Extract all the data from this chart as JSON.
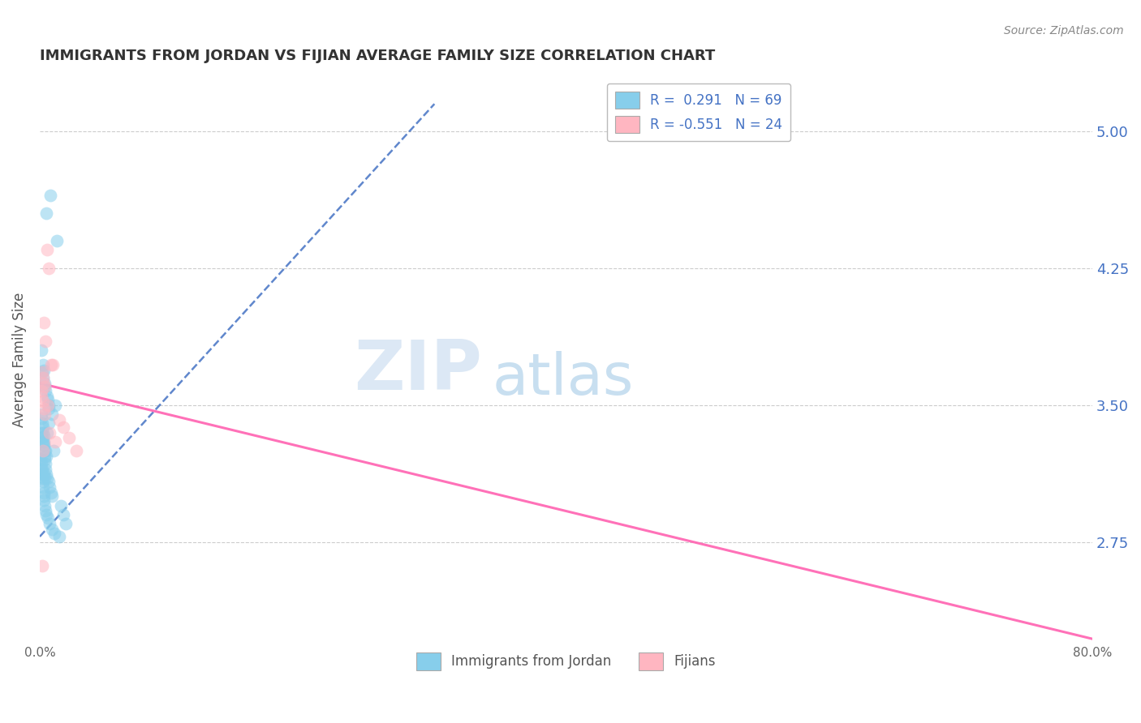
{
  "title": "IMMIGRANTS FROM JORDAN VS FIJIAN AVERAGE FAMILY SIZE CORRELATION CHART",
  "source": "Source: ZipAtlas.com",
  "ylabel": "Average Family Size",
  "yticks": [
    2.75,
    3.5,
    4.25,
    5.0
  ],
  "ytick_labels": [
    "2.75",
    "3.50",
    "4.25",
    "5.00"
  ],
  "ylim": [
    2.2,
    5.3
  ],
  "xlim": [
    0.0,
    80.0
  ],
  "legend_r1": "R =  0.291   N = 69",
  "legend_r2": "R = -0.551   N = 24",
  "color_blue": "#87CEEB",
  "color_pink": "#FFB6C1",
  "color_blue_line": "#4472c4",
  "color_pink_line": "#FF69B4",
  "watermark_zip": "ZIP",
  "watermark_atlas": "atlas",
  "watermark_color_zip": "#dce8f5",
  "watermark_color_atlas": "#c8dff0",
  "title_color": "#333333",
  "right_tick_color": "#4472c4",
  "jordan_x": [
    0.5,
    0.8,
    1.3,
    0.15,
    0.25,
    0.3,
    0.2,
    0.25,
    0.35,
    0.4,
    0.45,
    0.55,
    0.6,
    0.65,
    0.7,
    0.1,
    0.15,
    0.2,
    0.22,
    0.25,
    0.28,
    0.3,
    0.32,
    0.35,
    0.38,
    0.4,
    0.42,
    0.45,
    0.5,
    0.55,
    0.65,
    0.75,
    0.85,
    0.95,
    1.05,
    0.12,
    0.18,
    0.24,
    0.32,
    0.42,
    0.52,
    0.08,
    0.14,
    0.2,
    0.28,
    0.38,
    0.55,
    0.7,
    0.9,
    1.2,
    0.1,
    0.15,
    0.2,
    0.22,
    0.25,
    0.28,
    0.3,
    0.32,
    0.38,
    0.44,
    0.5,
    0.6,
    0.75,
    0.92,
    1.1,
    1.5,
    1.6,
    1.8,
    2.0
  ],
  "jordan_y": [
    4.55,
    4.65,
    4.4,
    3.8,
    3.72,
    3.69,
    3.68,
    3.65,
    3.62,
    3.6,
    3.58,
    3.55,
    3.53,
    3.5,
    3.48,
    3.45,
    3.43,
    3.4,
    3.38,
    3.35,
    3.33,
    3.3,
    3.28,
    3.25,
    3.22,
    3.2,
    3.18,
    3.15,
    3.12,
    3.1,
    3.08,
    3.05,
    3.02,
    3.0,
    3.25,
    3.35,
    3.32,
    3.3,
    3.28,
    3.25,
    3.22,
    3.2,
    3.18,
    3.15,
    3.12,
    3.1,
    3.35,
    3.4,
    3.45,
    3.5,
    3.15,
    3.12,
    3.1,
    3.08,
    3.05,
    3.02,
    3.0,
    2.98,
    2.95,
    2.92,
    2.9,
    2.88,
    2.85,
    2.82,
    2.8,
    2.78,
    2.95,
    2.9,
    2.85
  ],
  "fijian_x": [
    0.55,
    0.7,
    0.3,
    0.42,
    0.85,
    0.18,
    0.25,
    0.32,
    0.4,
    1.0,
    0.15,
    0.22,
    0.28,
    0.35,
    0.62,
    1.5,
    0.1,
    1.8,
    2.2,
    2.8,
    0.18,
    0.25,
    0.75,
    1.2
  ],
  "fijian_y": [
    4.35,
    4.25,
    3.95,
    3.85,
    3.72,
    3.68,
    3.65,
    3.62,
    3.6,
    3.72,
    3.55,
    3.52,
    3.48,
    3.45,
    3.5,
    3.42,
    3.58,
    3.38,
    3.32,
    3.25,
    2.62,
    3.25,
    3.35,
    3.3
  ],
  "blue_line_x": [
    0.0,
    30.0
  ],
  "blue_line_y": [
    2.78,
    5.15
  ],
  "pink_line_x": [
    0.0,
    80.0
  ],
  "pink_line_y": [
    3.62,
    2.22
  ]
}
